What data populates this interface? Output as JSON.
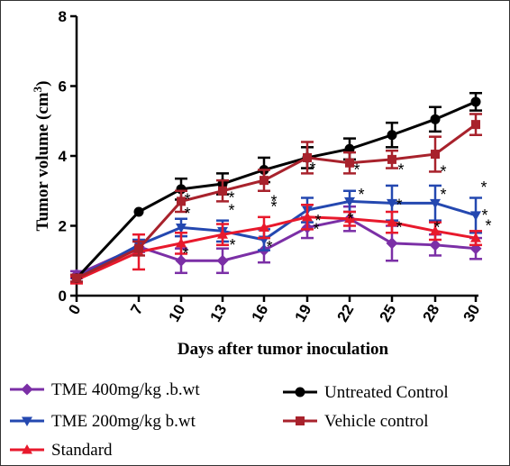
{
  "chart_data": {
    "type": "line",
    "title": "",
    "xlabel": "Days after tumor inoculation",
    "ylabel_main": "Tumor volume (cm",
    "ylabel_sup": "3",
    "ylabel_close": ")",
    "categories": [
      "0",
      "7",
      "10",
      "13",
      "16",
      "19",
      "22",
      "25",
      "28",
      "30"
    ],
    "y_ticks": [
      "0",
      "2",
      "4",
      "6",
      "8"
    ],
    "ylim": [
      0,
      8
    ],
    "significance_marker": "*",
    "series": [
      {
        "name": "TME 400mg/kg .b.wt",
        "color": "#7b2fa6",
        "marker": "diamond",
        "values": [
          0.6,
          1.4,
          1.0,
          1.0,
          1.3,
          1.95,
          2.2,
          1.5,
          1.45,
          1.35
        ],
        "errors": [
          0.1,
          0.15,
          0.35,
          0.35,
          0.35,
          0.3,
          0.35,
          0.5,
          0.3,
          0.3
        ]
      },
      {
        "name": "TME 200mg/kg b.wt",
        "color": "#2448b0",
        "marker": "triangle-down",
        "values": [
          0.5,
          1.45,
          1.95,
          1.85,
          1.6,
          2.45,
          2.7,
          2.65,
          2.65,
          2.3
        ],
        "errors": [
          0.1,
          0.15,
          0.25,
          0.3,
          0.3,
          0.35,
          0.3,
          0.5,
          0.5,
          0.5
        ]
      },
      {
        "name": "Standard",
        "color": "#e8192c",
        "marker": "triangle-up",
        "values": [
          0.45,
          1.25,
          1.5,
          1.75,
          1.95,
          2.25,
          2.2,
          2.1,
          1.85,
          1.65
        ],
        "errors": [
          0.1,
          0.5,
          0.3,
          0.3,
          0.3,
          0.35,
          0.2,
          0.3,
          0.25,
          0.2
        ]
      },
      {
        "name": "Untreated Control",
        "color": "#000000",
        "marker": "circle",
        "values": [
          0.5,
          2.4,
          3.05,
          3.2,
          3.6,
          3.95,
          4.2,
          4.6,
          5.05,
          5.55
        ],
        "errors": [
          0.05,
          0.05,
          0.3,
          0.3,
          0.35,
          0.3,
          0.3,
          0.35,
          0.35,
          0.25
        ]
      },
      {
        "name": "Vehicle control",
        "color": "#a8222c",
        "marker": "square",
        "values": [
          0.5,
          1.35,
          2.7,
          3.0,
          3.3,
          3.95,
          3.8,
          3.9,
          4.05,
          4.9
        ],
        "errors": [
          0.1,
          0.2,
          0.3,
          0.3,
          0.3,
          0.45,
          0.3,
          0.25,
          0.5,
          0.3
        ]
      }
    ],
    "legend_placement": "bottom",
    "grid": false
  }
}
